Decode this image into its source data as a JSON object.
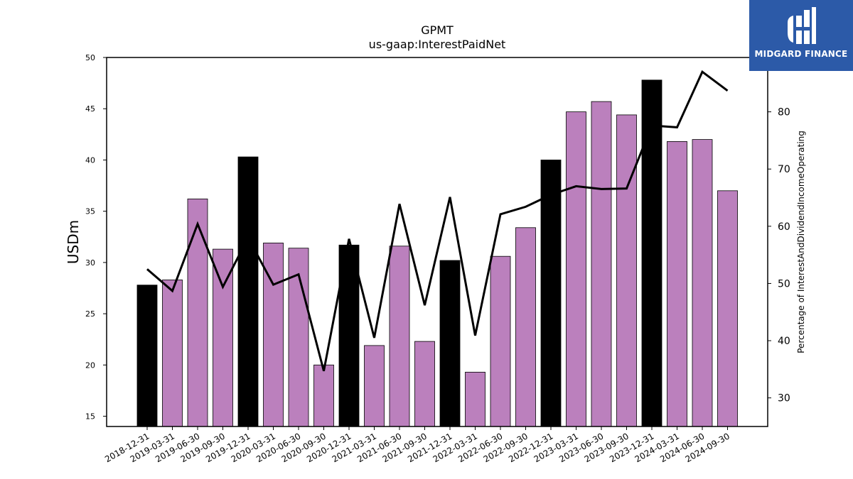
{
  "chart_data": {
    "type": "bar",
    "title": "GPMT",
    "subtitle": "us-gaap:InterestPaidNet",
    "ylabel": "USDm",
    "y2label": "Percentage of InterestAndDividendIncomeOperating",
    "ylim": [
      14,
      50
    ],
    "y2lim": [
      25,
      89.5
    ],
    "yticks": [
      15,
      20,
      25,
      30,
      35,
      40,
      45,
      50
    ],
    "y2ticks": [
      30,
      40,
      50,
      60,
      70,
      80
    ],
    "categories": [
      "2018-12-31",
      "2019-03-31",
      "2019-06-30",
      "2019-09-30",
      "2019-12-31",
      "2020-03-31",
      "2020-06-30",
      "2020-09-30",
      "2020-12-31",
      "2021-03-31",
      "2021-06-30",
      "2021-09-30",
      "2021-12-31",
      "2022-03-31",
      "2022-06-30",
      "2022-09-30",
      "2022-12-31",
      "2023-03-31",
      "2023-06-30",
      "2023-09-30",
      "2023-12-31",
      "2024-03-31",
      "2024-06-30",
      "2024-09-30"
    ],
    "series": [
      {
        "type": "bar",
        "axis": "left",
        "values": [
          27.8,
          28.3,
          36.2,
          31.3,
          40.3,
          31.9,
          31.4,
          20.0,
          31.7,
          21.9,
          31.6,
          22.3,
          30.2,
          19.3,
          30.6,
          33.4,
          40.0,
          44.7,
          45.7,
          44.4,
          47.8,
          41.8,
          42.0,
          37.0
        ],
        "colors": [
          "#000000",
          "#bb80bd",
          "#bb80bd",
          "#bb80bd",
          "#000000",
          "#bb80bd",
          "#bb80bd",
          "#bb80bd",
          "#000000",
          "#bb80bd",
          "#bb80bd",
          "#bb80bd",
          "#000000",
          "#bb80bd",
          "#bb80bd",
          "#bb80bd",
          "#000000",
          "#bb80bd",
          "#bb80bd",
          "#bb80bd",
          "#000000",
          "#bb80bd",
          "#bb80bd",
          "#bb80bd"
        ]
      },
      {
        "type": "line",
        "axis": "right",
        "color": "#000000",
        "values": [
          52.5,
          48.7,
          60.4,
          49.4,
          58.0,
          49.8,
          51.6,
          34.7,
          57.8,
          40.5,
          63.9,
          46.2,
          65.1,
          40.9,
          62.1,
          63.4,
          65.5,
          67.0,
          66.5,
          66.6,
          77.6,
          77.3,
          87.0,
          83.7
        ]
      }
    ],
    "grid": false
  },
  "logo": {
    "text": "MIDGARD FINANCE",
    "background": "#2c5aa8"
  }
}
